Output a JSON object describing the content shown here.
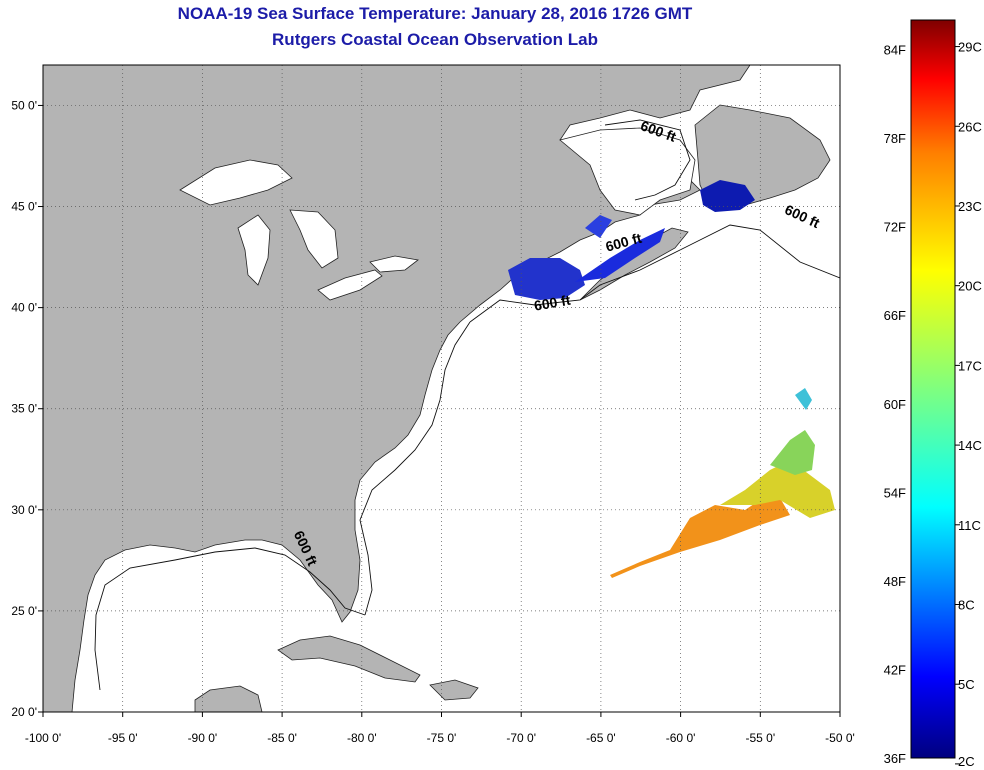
{
  "header": {
    "title": "NOAA-19 Sea Surface Temperature:  January 28, 2016 1726 GMT",
    "subtitle": "Rutgers Coastal Ocean Observation Lab"
  },
  "map": {
    "lon_range": [
      -100,
      -50
    ],
    "lat_range": [
      20,
      52
    ],
    "lon_ticks": [
      {
        "value": -100,
        "label": "-100 0'"
      },
      {
        "value": -95,
        "label": "-95 0'"
      },
      {
        "value": -90,
        "label": "-90 0'"
      },
      {
        "value": -85,
        "label": "-85 0'"
      },
      {
        "value": -80,
        "label": "-80 0'"
      },
      {
        "value": -75,
        "label": "-75 0'"
      },
      {
        "value": -70,
        "label": "-70 0'"
      },
      {
        "value": -65,
        "label": "-65 0'"
      },
      {
        "value": -60,
        "label": "-60 0'"
      },
      {
        "value": -55,
        "label": "-55 0'"
      },
      {
        "value": -50,
        "label": "-50 0'"
      }
    ],
    "lat_ticks": [
      {
        "value": 20,
        "label": "20 0'"
      },
      {
        "value": 25,
        "label": "25 0'"
      },
      {
        "value": 30,
        "label": "30 0'"
      },
      {
        "value": 35,
        "label": "35 0'"
      },
      {
        "value": 40,
        "label": "40 0'"
      },
      {
        "value": 45,
        "label": "45 0'"
      },
      {
        "value": 50,
        "label": "50 0'"
      }
    ],
    "contour_labels": [
      {
        "text": "600 ft",
        "lon": -61.5,
        "lat": 48.5,
        "angle": 20
      },
      {
        "text": "600 ft",
        "lon": -52.5,
        "lat": 44.3,
        "angle": 25
      },
      {
        "text": "600 ft",
        "lon": -63.5,
        "lat": 43.0,
        "angle": -15
      },
      {
        "text": "600 ft",
        "lon": -68.0,
        "lat": 40.0,
        "angle": -10
      },
      {
        "text": "600 ft",
        "lon": -83.8,
        "lat": 28.0,
        "angle": 65
      }
    ],
    "colors": {
      "land": "#b4b4b4",
      "ocean": "#ffffff",
      "grid": "#444444",
      "title": "#1c1ca8"
    }
  },
  "colorbar": {
    "min_f": 36,
    "max_f": 86,
    "f_labels": [
      "84F",
      "78F",
      "72F",
      "66F",
      "60F",
      "54F",
      "48F",
      "42F",
      "36F"
    ],
    "c_labels": [
      "29C",
      "26C",
      "23C",
      "20C",
      "17C",
      "14C",
      "11C",
      "8C",
      "5C",
      "2C"
    ],
    "f_values": [
      84,
      78,
      72,
      66,
      60,
      54,
      48,
      42,
      36
    ],
    "c_values": [
      29,
      26,
      23,
      20,
      17,
      14,
      11,
      8,
      5,
      2
    ],
    "palette": [
      "#00007f",
      "#0000ff",
      "#007fff",
      "#00ffff",
      "#7fff7f",
      "#ffff00",
      "#ff7f00",
      "#ff0000",
      "#7f0000"
    ]
  }
}
